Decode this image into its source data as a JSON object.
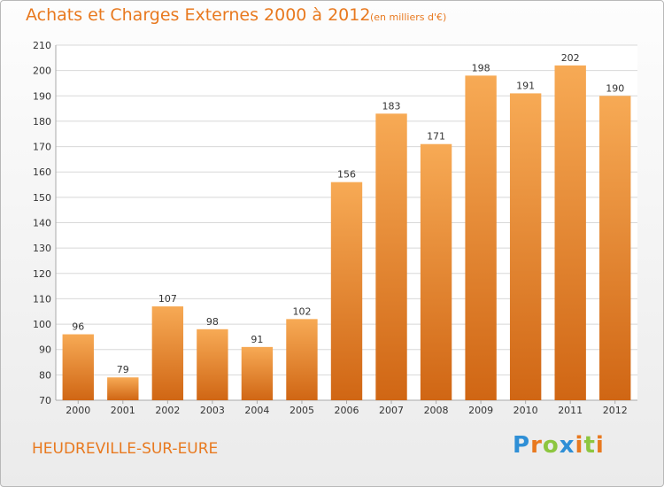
{
  "title": "Achats et Charges Externes 2000 à 2012",
  "subtitle": "(en milliers d'€)",
  "place": "HEUDREVILLE-SUR-EURE",
  "logo": {
    "text": "Proxiti"
  },
  "colors": {
    "accent": "#e8791f",
    "bar_light": "#f6a54f",
    "bar_dark": "#cf6513",
    "grid": "#d8d8d8"
  },
  "chart_data": {
    "type": "bar",
    "title": "Achats et Charges Externes 2000 à 2012",
    "subtitle": "(en milliers d'€)",
    "categories": [
      "2000",
      "2001",
      "2002",
      "2003",
      "2004",
      "2005",
      "2006",
      "2007",
      "2008",
      "2009",
      "2010",
      "2011",
      "2012"
    ],
    "values": [
      96,
      79,
      107,
      98,
      91,
      102,
      156,
      183,
      171,
      198,
      191,
      202,
      190
    ],
    "ylim": [
      70,
      210
    ],
    "yticks": [
      70,
      80,
      90,
      100,
      110,
      120,
      130,
      140,
      150,
      160,
      170,
      180,
      190,
      200,
      210
    ],
    "grid": true,
    "legend": "none"
  }
}
